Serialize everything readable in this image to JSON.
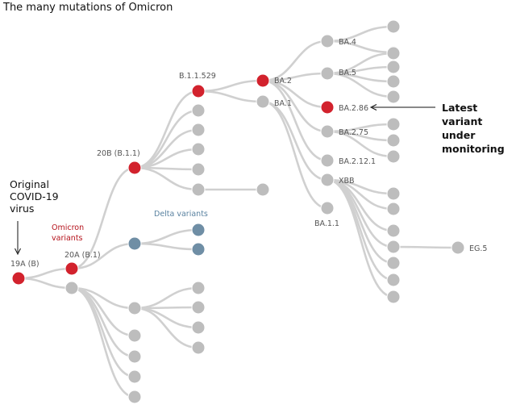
{
  "title": "The many mutations of Omicron",
  "colors": {
    "grey": "#bdbdbd",
    "red": "#d2222d",
    "blue": "#6f8ea5",
    "line": "#d0d0d0"
  },
  "nodes": [
    {
      "id": "19A",
      "label": "19A (B)",
      "color": "red"
    },
    {
      "id": "20A",
      "label": "20A (B.1)",
      "color": "red"
    },
    {
      "id": "20B",
      "label": "20B (B.1.1)",
      "color": "red"
    },
    {
      "id": "B11529",
      "label": "B.1.1.529",
      "color": "red"
    },
    {
      "id": "BA2",
      "label": "BA.2",
      "color": "red"
    },
    {
      "id": "BA1",
      "label": "BA.1",
      "color": "grey"
    },
    {
      "id": "BA4",
      "label": "BA.4",
      "color": "grey"
    },
    {
      "id": "BA5",
      "label": "BA.5",
      "color": "grey"
    },
    {
      "id": "BA286",
      "label": "BA.2.86",
      "color": "red"
    },
    {
      "id": "BA275",
      "label": "BA.2.75",
      "color": "grey"
    },
    {
      "id": "BA2121",
      "label": "BA.2.12.1",
      "color": "grey"
    },
    {
      "id": "XBB",
      "label": "XBB",
      "color": "grey"
    },
    {
      "id": "BA11",
      "label": "BA.1.1",
      "color": "grey"
    },
    {
      "id": "EG5",
      "label": "EG.5",
      "color": "grey"
    },
    {
      "id": "DeltaP",
      "label": "",
      "color": "blue"
    },
    {
      "id": "D1",
      "label": "",
      "color": "blue"
    },
    {
      "id": "D2",
      "label": "",
      "color": "blue"
    }
  ],
  "annotations": {
    "original": [
      "Original",
      "COVID-19",
      "virus"
    ],
    "omicron": [
      "Omicron",
      "variants"
    ],
    "delta": "Delta variants",
    "latest": [
      "Latest",
      "variant",
      "under",
      "monitoring"
    ]
  }
}
